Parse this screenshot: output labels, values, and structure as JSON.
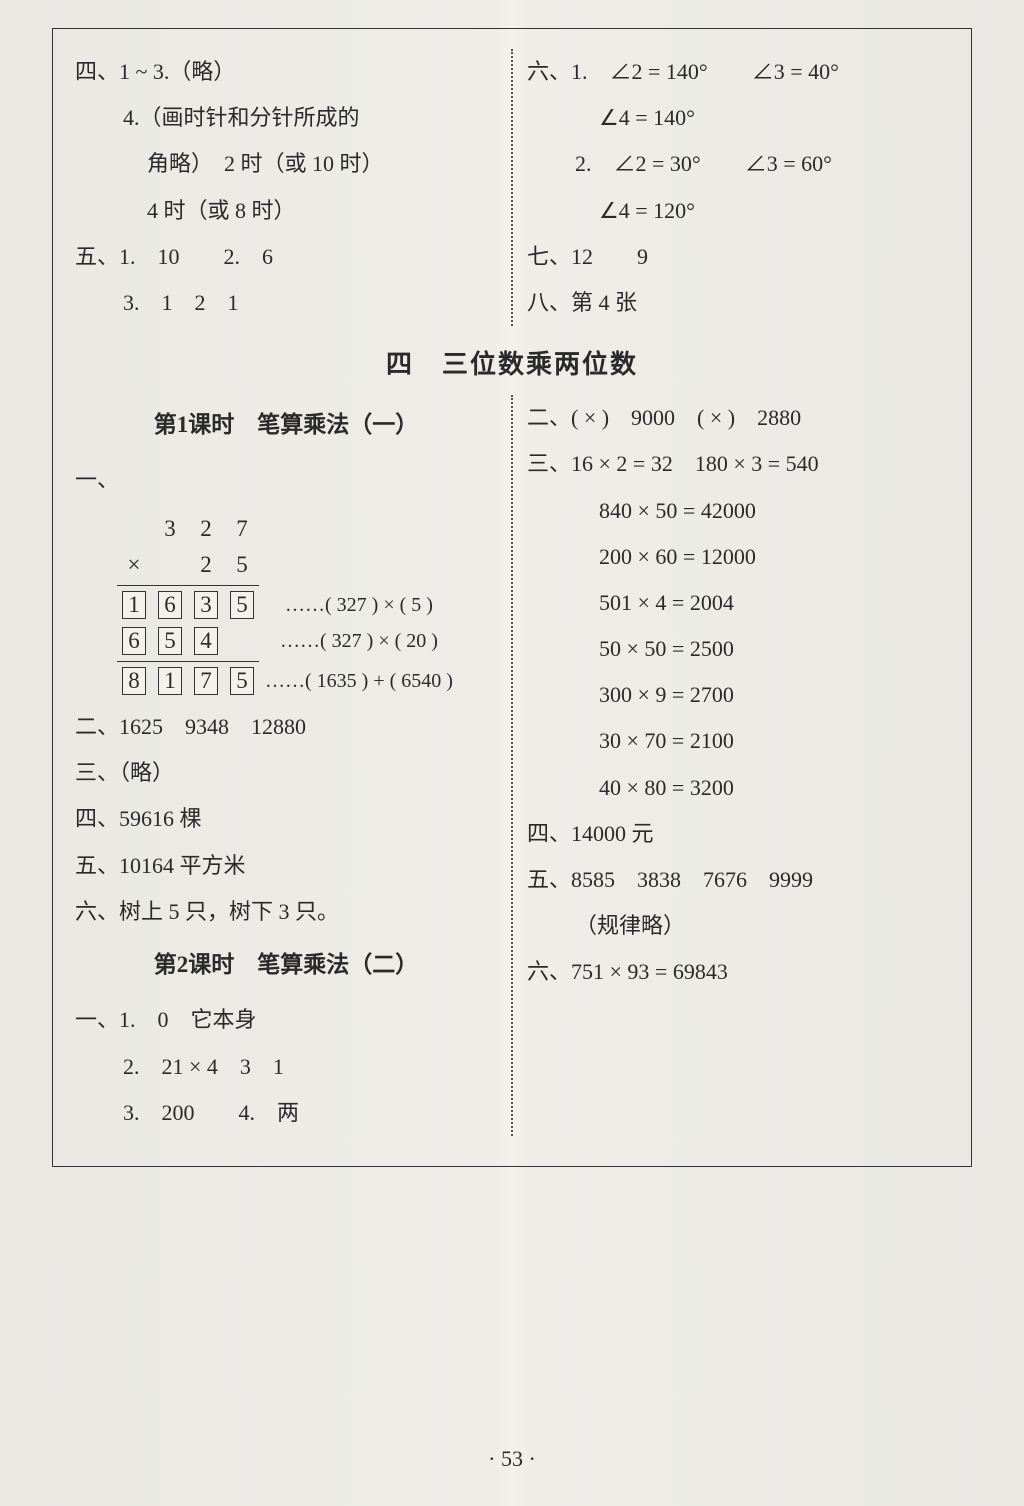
{
  "top": {
    "left": {
      "lines": [
        {
          "t": "四、1 ~ 3.（略）",
          "cls": ""
        },
        {
          "t": "4.（画时针和分针所成的",
          "cls": "indent1"
        },
        {
          "t": "角略）　2 时（或 10 时）",
          "cls": "indent2"
        },
        {
          "t": "4 时（或 8 时）",
          "cls": "indent2"
        },
        {
          "t": "五、1.　10　　2.　6",
          "cls": ""
        },
        {
          "t": "3.　1　2　1",
          "cls": "indent1"
        }
      ]
    },
    "right": {
      "lines": [
        {
          "t": "六、1.　∠2 = 140°　　∠3 = 40°",
          "cls": ""
        },
        {
          "t": "∠4 = 140°",
          "cls": "indent2"
        },
        {
          "t": "2.　∠2 = 30°　　∠3 = 60°",
          "cls": "indent1"
        },
        {
          "t": "∠4 = 120°",
          "cls": "indent2"
        },
        {
          "t": "七、12　　9",
          "cls": ""
        },
        {
          "t": "八、第 4 张",
          "cls": ""
        }
      ]
    }
  },
  "chapter_title": "四　三位数乘两位数",
  "lesson1_title": "第1课时　笔算乘法（一）",
  "lesson2_title": "第2课时　笔算乘法（二）",
  "mult": {
    "top_digits": [
      "3",
      "2",
      "7"
    ],
    "times_digits": [
      "2",
      "5"
    ],
    "row1_boxes": [
      "1",
      "6",
      "3",
      "5"
    ],
    "row1_annot": "……( 327 ) × ( 5 )",
    "row2_boxes": [
      "6",
      "5",
      "4"
    ],
    "row2_annot": "……( 327 ) × ( 20 )",
    "row3_boxes": [
      "8",
      "1",
      "7",
      "5"
    ],
    "row3_annot": "……( 1635 ) + ( 6540 )"
  },
  "bottom": {
    "left_before_lesson2": [
      {
        "t": "一、",
        "cls": ""
      }
    ],
    "left_after_mult": [
      {
        "t": "二、1625　9348　12880",
        "cls": ""
      },
      {
        "t": "三、（略）",
        "cls": ""
      },
      {
        "t": "四、59616 棵",
        "cls": ""
      },
      {
        "t": "五、10164 平方米",
        "cls": ""
      },
      {
        "t": "六、树上 5 只，树下 3 只。",
        "cls": ""
      }
    ],
    "left_lesson2": [
      {
        "t": "一、1.　0　它本身",
        "cls": ""
      },
      {
        "t": "2.　21 × 4　3　1",
        "cls": "indent1"
      },
      {
        "t": "3.　200　　4.　两",
        "cls": "indent1"
      }
    ],
    "right": [
      {
        "t": "二、( × )　9000　( × )　2880",
        "cls": ""
      },
      {
        "t": "三、16 × 2 = 32　180 × 3 = 540",
        "cls": ""
      },
      {
        "t": "840 × 50 = 42000",
        "cls": "indent2"
      },
      {
        "t": "200 × 60 = 12000",
        "cls": "indent2"
      },
      {
        "t": "501 × 4 = 2004",
        "cls": "indent2"
      },
      {
        "t": "50 × 50 = 2500",
        "cls": "indent2"
      },
      {
        "t": "300 × 9 = 2700",
        "cls": "indent2"
      },
      {
        "t": "30 × 70 = 2100",
        "cls": "indent2"
      },
      {
        "t": "40 × 80 = 3200",
        "cls": "indent2"
      },
      {
        "t": "四、14000 元",
        "cls": ""
      },
      {
        "t": "五、8585　3838　7676　9999",
        "cls": ""
      },
      {
        "t": "（规律略）",
        "cls": "indent1"
      },
      {
        "t": "六、751 × 93 = 69843",
        "cls": ""
      }
    ]
  },
  "page_number": "· 53 ·"
}
